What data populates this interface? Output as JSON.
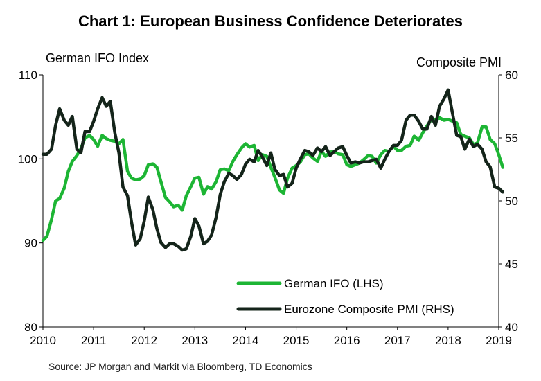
{
  "title": "Chart 1: European Business Confidence Deteriorates",
  "source": "Source: JP Morgan and Markit via Bloomberg, TD Economics",
  "chart_data": {
    "type": "line",
    "title": "Chart 1: European Business Confidence Deteriorates",
    "left_axis_title": "German IFO Index",
    "right_axis_title": "Composite PMI",
    "ylim_left": [
      80,
      110
    ],
    "ylim_right": [
      40,
      60
    ],
    "xlim": [
      2010,
      2019
    ],
    "x_ticks": [
      "2010",
      "2011",
      "2012",
      "2013",
      "2014",
      "2015",
      "2016",
      "2017",
      "2018",
      "2019"
    ],
    "y_left_ticks": [
      "80",
      "90",
      "100",
      "110"
    ],
    "y_right_ticks": [
      "40",
      "45",
      "50",
      "55",
      "60"
    ],
    "legend_position": "bottom-right",
    "series": [
      {
        "name": "German IFO (LHS)",
        "axis": "left",
        "color": "#1db534",
        "points": [
          [
            2010.0,
            90.3
          ],
          [
            2010.08,
            90.8
          ],
          [
            2010.17,
            92.8
          ],
          [
            2010.25,
            95.0
          ],
          [
            2010.33,
            95.3
          ],
          [
            2010.42,
            96.5
          ],
          [
            2010.5,
            98.5
          ],
          [
            2010.58,
            99.7
          ],
          [
            2010.67,
            100.4
          ],
          [
            2010.75,
            101.2
          ],
          [
            2010.83,
            102.5
          ],
          [
            2010.92,
            102.8
          ],
          [
            2011.0,
            102.3
          ],
          [
            2011.08,
            101.5
          ],
          [
            2011.17,
            102.8
          ],
          [
            2011.25,
            102.4
          ],
          [
            2011.33,
            102.2
          ],
          [
            2011.42,
            102.1
          ],
          [
            2011.5,
            101.8
          ],
          [
            2011.58,
            102.3
          ],
          [
            2011.67,
            98.5
          ],
          [
            2011.75,
            97.7
          ],
          [
            2011.83,
            97.5
          ],
          [
            2011.92,
            97.6
          ],
          [
            2012.0,
            98.0
          ],
          [
            2012.08,
            99.3
          ],
          [
            2012.17,
            99.4
          ],
          [
            2012.25,
            99.0
          ],
          [
            2012.33,
            97.3
          ],
          [
            2012.42,
            95.4
          ],
          [
            2012.5,
            94.9
          ],
          [
            2012.58,
            94.3
          ],
          [
            2012.67,
            94.5
          ],
          [
            2012.75,
            93.9
          ],
          [
            2012.83,
            95.6
          ],
          [
            2012.92,
            96.7
          ],
          [
            2013.0,
            97.7
          ],
          [
            2013.08,
            97.8
          ],
          [
            2013.17,
            95.8
          ],
          [
            2013.25,
            96.7
          ],
          [
            2013.33,
            96.4
          ],
          [
            2013.42,
            97.3
          ],
          [
            2013.5,
            98.7
          ],
          [
            2013.58,
            98.8
          ],
          [
            2013.67,
            98.6
          ],
          [
            2013.75,
            99.7
          ],
          [
            2013.83,
            100.5
          ],
          [
            2013.92,
            101.3
          ],
          [
            2014.0,
            101.8
          ],
          [
            2014.08,
            101.4
          ],
          [
            2014.17,
            101.6
          ],
          [
            2014.25,
            99.8
          ],
          [
            2014.33,
            100.5
          ],
          [
            2014.42,
            100.3
          ],
          [
            2014.5,
            99.0
          ],
          [
            2014.58,
            97.8
          ],
          [
            2014.67,
            96.3
          ],
          [
            2014.75,
            95.9
          ],
          [
            2014.83,
            97.7
          ],
          [
            2014.92,
            98.9
          ],
          [
            2015.0,
            99.2
          ],
          [
            2015.08,
            99.6
          ],
          [
            2015.17,
            100.5
          ],
          [
            2015.25,
            100.6
          ],
          [
            2015.33,
            100.1
          ],
          [
            2015.42,
            99.7
          ],
          [
            2015.5,
            100.9
          ],
          [
            2015.58,
            100.3
          ],
          [
            2015.67,
            100.8
          ],
          [
            2015.75,
            100.9
          ],
          [
            2015.83,
            100.6
          ],
          [
            2015.92,
            100.5
          ],
          [
            2016.0,
            99.3
          ],
          [
            2016.08,
            99.1
          ],
          [
            2016.17,
            99.3
          ],
          [
            2016.25,
            99.5
          ],
          [
            2016.33,
            99.9
          ],
          [
            2016.42,
            100.4
          ],
          [
            2016.5,
            100.3
          ],
          [
            2016.58,
            99.5
          ],
          [
            2016.67,
            100.5
          ],
          [
            2016.75,
            101.0
          ],
          [
            2016.83,
            100.9
          ],
          [
            2016.92,
            101.5
          ],
          [
            2017.0,
            101.0
          ],
          [
            2017.08,
            101.0
          ],
          [
            2017.17,
            101.5
          ],
          [
            2017.25,
            101.6
          ],
          [
            2017.33,
            102.7
          ],
          [
            2017.42,
            102.2
          ],
          [
            2017.5,
            103.1
          ],
          [
            2017.58,
            103.9
          ],
          [
            2017.67,
            104.7
          ],
          [
            2017.75,
            104.6
          ],
          [
            2017.83,
            104.9
          ],
          [
            2017.92,
            104.6
          ],
          [
            2018.0,
            104.7
          ],
          [
            2018.08,
            104.5
          ],
          [
            2018.17,
            104.3
          ],
          [
            2018.25,
            102.9
          ],
          [
            2018.33,
            102.7
          ],
          [
            2018.42,
            102.5
          ],
          [
            2018.5,
            101.7
          ],
          [
            2018.58,
            101.9
          ],
          [
            2018.67,
            103.8
          ],
          [
            2018.75,
            103.8
          ],
          [
            2018.83,
            102.3
          ],
          [
            2018.92,
            101.8
          ],
          [
            2019.0,
            100.5
          ],
          [
            2019.08,
            99.0
          ]
        ]
      },
      {
        "name": "Eurozone Composite PMI (RHS)",
        "axis": "right",
        "color": "#14241a",
        "points": [
          [
            2010.0,
            53.7
          ],
          [
            2010.08,
            53.7
          ],
          [
            2010.17,
            54.1
          ],
          [
            2010.25,
            56.0
          ],
          [
            2010.33,
            57.3
          ],
          [
            2010.42,
            56.4
          ],
          [
            2010.5,
            56.0
          ],
          [
            2010.58,
            56.7
          ],
          [
            2010.67,
            54.1
          ],
          [
            2010.75,
            53.8
          ],
          [
            2010.83,
            55.5
          ],
          [
            2010.92,
            55.5
          ],
          [
            2011.0,
            56.3
          ],
          [
            2011.08,
            57.3
          ],
          [
            2011.17,
            58.2
          ],
          [
            2011.25,
            57.5
          ],
          [
            2011.33,
            57.9
          ],
          [
            2011.42,
            55.4
          ],
          [
            2011.5,
            53.8
          ],
          [
            2011.58,
            51.1
          ],
          [
            2011.67,
            50.4
          ],
          [
            2011.75,
            48.3
          ],
          [
            2011.83,
            46.5
          ],
          [
            2011.92,
            47.0
          ],
          [
            2012.0,
            48.4
          ],
          [
            2012.08,
            50.3
          ],
          [
            2012.17,
            49.3
          ],
          [
            2012.25,
            47.8
          ],
          [
            2012.33,
            46.7
          ],
          [
            2012.42,
            46.3
          ],
          [
            2012.5,
            46.6
          ],
          [
            2012.58,
            46.6
          ],
          [
            2012.67,
            46.4
          ],
          [
            2012.75,
            46.1
          ],
          [
            2012.83,
            46.2
          ],
          [
            2012.92,
            47.2
          ],
          [
            2013.0,
            48.6
          ],
          [
            2013.08,
            48.0
          ],
          [
            2013.17,
            46.6
          ],
          [
            2013.25,
            46.8
          ],
          [
            2013.33,
            47.3
          ],
          [
            2013.42,
            48.7
          ],
          [
            2013.5,
            50.5
          ],
          [
            2013.58,
            51.5
          ],
          [
            2013.67,
            52.2
          ],
          [
            2013.75,
            52.0
          ],
          [
            2013.83,
            51.7
          ],
          [
            2013.92,
            52.1
          ],
          [
            2014.0,
            52.9
          ],
          [
            2014.08,
            53.3
          ],
          [
            2014.17,
            53.1
          ],
          [
            2014.25,
            54.0
          ],
          [
            2014.33,
            53.5
          ],
          [
            2014.42,
            52.8
          ],
          [
            2014.5,
            53.8
          ],
          [
            2014.58,
            52.5
          ],
          [
            2014.67,
            52.0
          ],
          [
            2014.75,
            52.1
          ],
          [
            2014.83,
            51.1
          ],
          [
            2014.92,
            51.4
          ],
          [
            2015.0,
            52.6
          ],
          [
            2015.08,
            53.3
          ],
          [
            2015.17,
            54.0
          ],
          [
            2015.25,
            53.9
          ],
          [
            2015.33,
            53.6
          ],
          [
            2015.42,
            54.2
          ],
          [
            2015.5,
            53.9
          ],
          [
            2015.58,
            54.3
          ],
          [
            2015.67,
            53.6
          ],
          [
            2015.75,
            53.9
          ],
          [
            2015.83,
            54.2
          ],
          [
            2015.92,
            54.3
          ],
          [
            2016.0,
            53.6
          ],
          [
            2016.08,
            53.0
          ],
          [
            2016.17,
            53.1
          ],
          [
            2016.25,
            53.0
          ],
          [
            2016.33,
            53.1
          ],
          [
            2016.42,
            53.1
          ],
          [
            2016.5,
            53.2
          ],
          [
            2016.58,
            53.3
          ],
          [
            2016.67,
            52.6
          ],
          [
            2016.75,
            53.3
          ],
          [
            2016.83,
            53.9
          ],
          [
            2016.92,
            54.4
          ],
          [
            2017.0,
            54.4
          ],
          [
            2017.08,
            54.8
          ],
          [
            2017.17,
            56.4
          ],
          [
            2017.25,
            56.8
          ],
          [
            2017.33,
            56.8
          ],
          [
            2017.42,
            56.3
          ],
          [
            2017.5,
            55.7
          ],
          [
            2017.58,
            55.7
          ],
          [
            2017.67,
            56.7
          ],
          [
            2017.75,
            56.0
          ],
          [
            2017.83,
            57.5
          ],
          [
            2017.92,
            58.1
          ],
          [
            2018.0,
            58.8
          ],
          [
            2018.08,
            57.1
          ],
          [
            2018.17,
            55.2
          ],
          [
            2018.25,
            55.1
          ],
          [
            2018.33,
            54.1
          ],
          [
            2018.42,
            54.9
          ],
          [
            2018.5,
            54.3
          ],
          [
            2018.58,
            54.5
          ],
          [
            2018.67,
            54.1
          ],
          [
            2018.75,
            53.1
          ],
          [
            2018.83,
            52.7
          ],
          [
            2018.92,
            51.1
          ],
          [
            2019.0,
            51.0
          ],
          [
            2019.08,
            50.7
          ]
        ]
      }
    ]
  }
}
